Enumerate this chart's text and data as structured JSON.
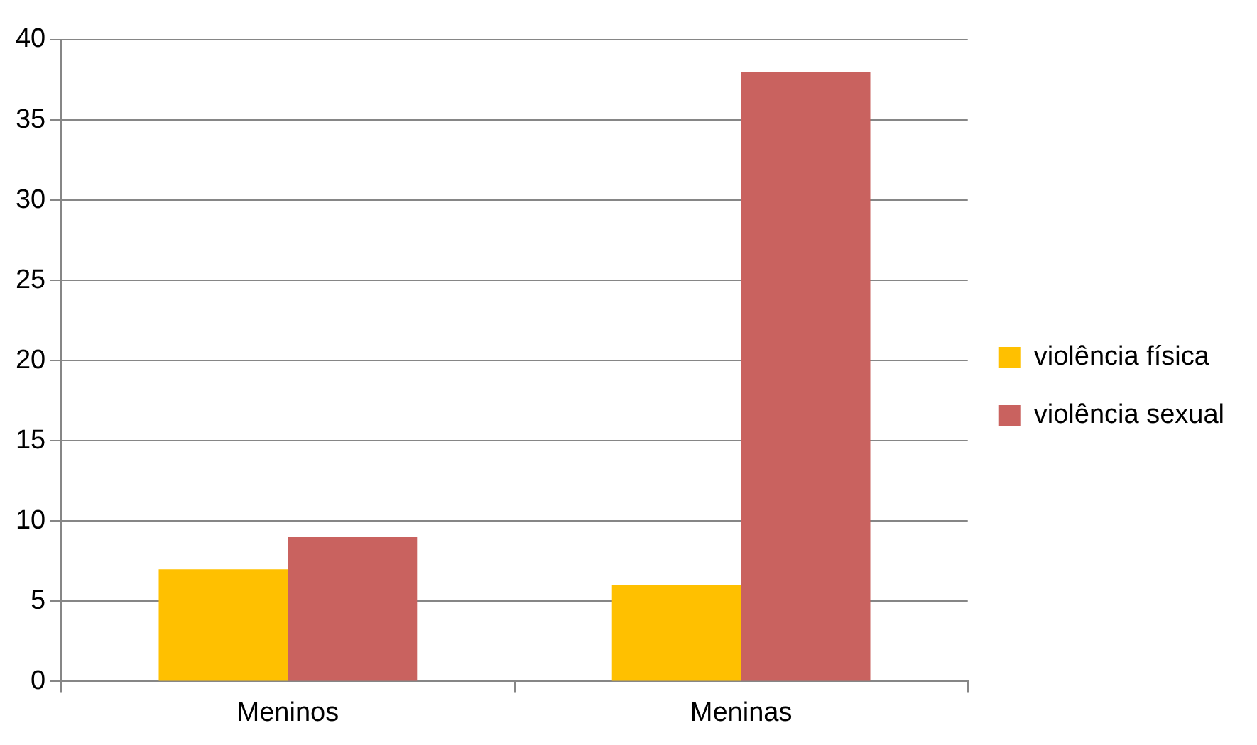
{
  "chart_data": {
    "type": "bar",
    "categories": [
      "Meninos",
      "Meninas"
    ],
    "series": [
      {
        "name": "violência física",
        "color": "#ffc000",
        "values": [
          7,
          6
        ]
      },
      {
        "name": "violência sexual",
        "color": "#c9625f",
        "values": [
          9,
          38
        ]
      }
    ],
    "ylim": [
      0,
      40
    ],
    "yticks": [
      0,
      5,
      10,
      15,
      20,
      25,
      30,
      35,
      40
    ],
    "grid": "y",
    "legend": "right"
  }
}
